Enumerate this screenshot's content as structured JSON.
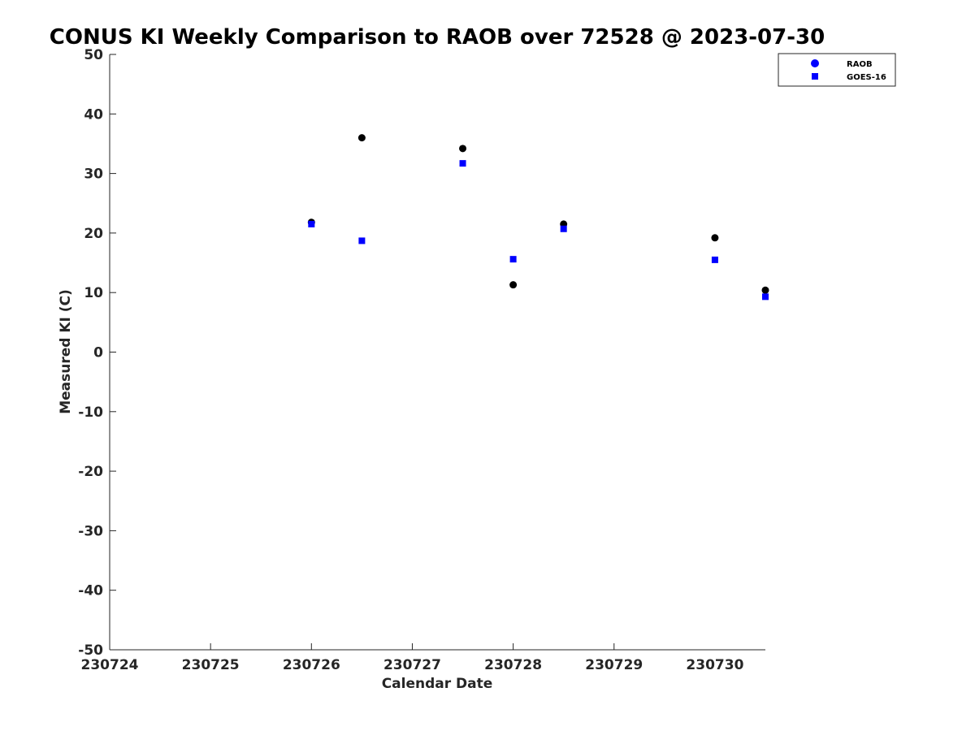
{
  "chart_data": {
    "type": "scatter",
    "title": "CONUS KI Weekly Comparison to RAOB over 72528 @ 2023-07-30",
    "xlabel": "Calendar Date",
    "ylabel": "Measured KI (C)",
    "xlim": [
      0,
      6.5
    ],
    "ylim": [
      -50,
      50
    ],
    "x_ticks": [
      0,
      1,
      2,
      3,
      4,
      5
    ],
    "x_tick_labels": [
      "230724",
      "230725",
      "230726",
      "230727",
      "230728",
      "230729",
      "230730"
    ],
    "x_tick_positions": [
      0,
      1,
      2,
      3,
      4,
      5,
      6
    ],
    "y_ticks": [
      50,
      40,
      30,
      20,
      10,
      0,
      -10,
      -20,
      -30,
      -40,
      -50
    ],
    "grid": false,
    "legend_position": "top-right",
    "series": [
      {
        "name": "RAOB",
        "marker": "circle",
        "color": "#0000ff",
        "point_color": "#000000",
        "x": [
          2.0,
          2.5,
          3.5,
          4.0,
          4.5,
          6.0,
          6.5
        ],
        "y": [
          21.8,
          36.0,
          34.2,
          11.3,
          21.5,
          19.2,
          10.4
        ]
      },
      {
        "name": "GOES-16",
        "marker": "square",
        "color": "#0000ff",
        "point_color": "#0000ff",
        "x": [
          2.0,
          2.5,
          3.5,
          4.0,
          4.5,
          6.0,
          6.5
        ],
        "y": [
          21.5,
          18.7,
          31.7,
          15.6,
          20.7,
          15.5,
          9.3
        ]
      }
    ]
  }
}
